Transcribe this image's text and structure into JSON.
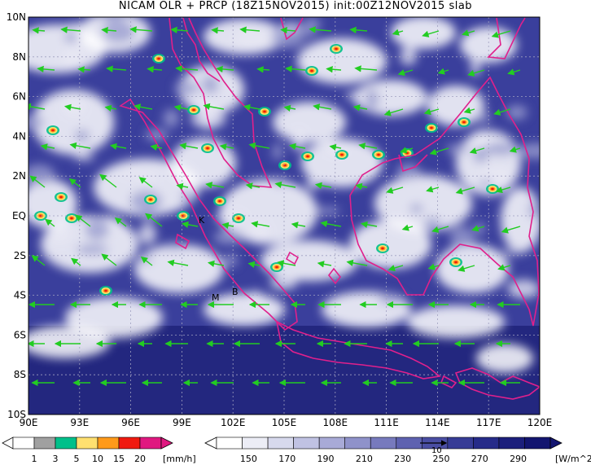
{
  "title": "NICAM OLR + PRCP (18Z15NOV2015) init:00Z12NOV2015 slab",
  "map": {
    "lon_range": [
      90,
      120
    ],
    "lat_range": [
      -10,
      10
    ],
    "x_ticks": [
      "90E",
      "93E",
      "96E",
      "99E",
      "102E",
      "105E",
      "108E",
      "111E",
      "114E",
      "117E",
      "120E"
    ],
    "y_ticks": [
      "10N",
      "8N",
      "6N",
      "4N",
      "2N",
      "EQ",
      "2S",
      "4S",
      "6S",
      "8S",
      "10S"
    ],
    "station_markers": [
      "K",
      "M",
      "B"
    ],
    "colors": {
      "ocean_low_olr": "#2a2f8e",
      "cloud": "#ffffff",
      "coast": "#e0208c",
      "wind": "#22cc22",
      "grid": "#9a9ab0"
    }
  },
  "precip_bar": {
    "labels": [
      "1",
      "3",
      "5",
      "10",
      "15",
      "20"
    ],
    "unit": "[mm/h]",
    "colors": [
      "#ffffff",
      "#a0a0a0",
      "#00c08a",
      "#ffe070",
      "#ff9a1a",
      "#f01a10",
      "#e01880"
    ]
  },
  "olr_bar": {
    "labels": [
      "150",
      "170",
      "190",
      "210",
      "230",
      "250",
      "270",
      "290"
    ],
    "unit": "[W/m^2]",
    "ref_arrow_label": "10",
    "colors": [
      "#ffffff",
      "#ecedf6",
      "#d7d9ed",
      "#c0c2e3",
      "#a8aad7",
      "#8f92ca",
      "#777abd",
      "#5e62b0",
      "#4a4ea3",
      "#373c96",
      "#262b89",
      "#1c1f7c",
      "#131570"
    ]
  }
}
